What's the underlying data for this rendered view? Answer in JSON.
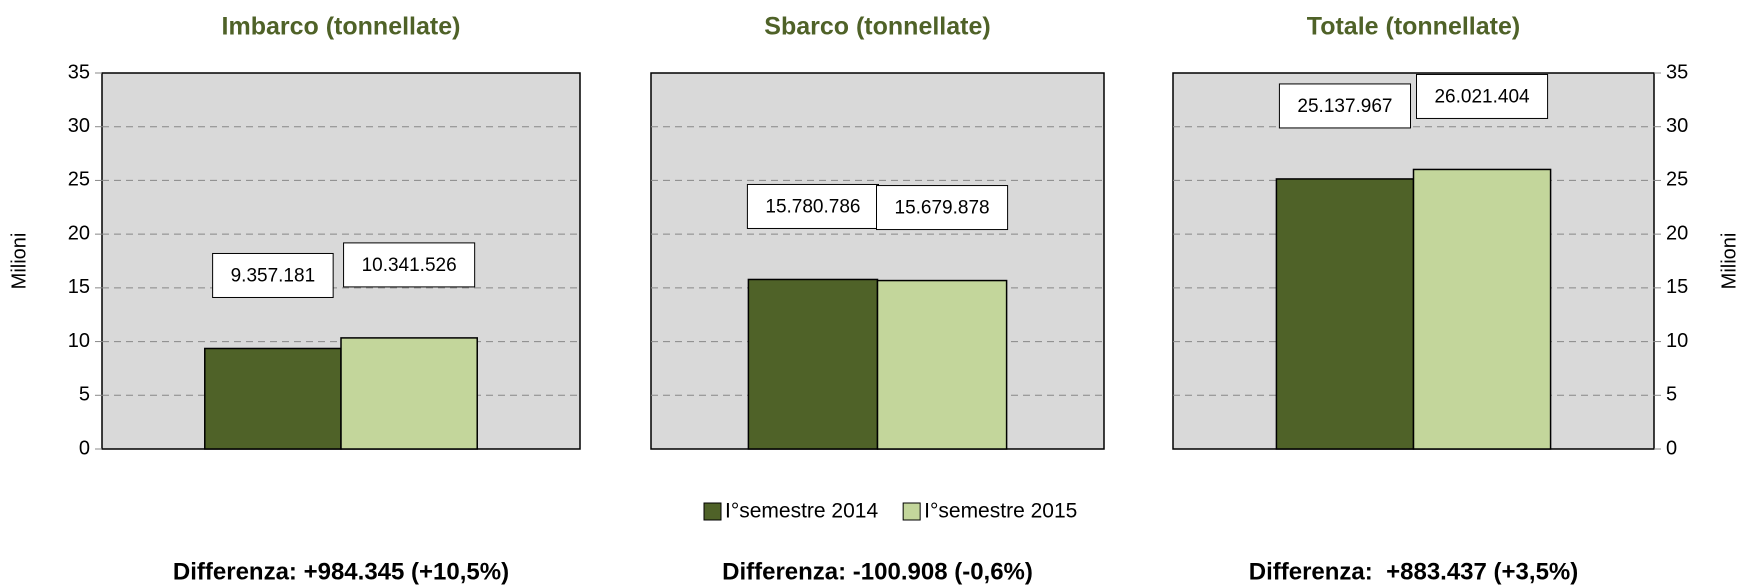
{
  "chart_data": [
    {
      "type": "bar",
      "title": "Imbarco (tonnellate)",
      "ylabel": "Milioni",
      "axis_side": "left",
      "ylim": [
        0,
        35
      ],
      "yticks": [
        0,
        5,
        10,
        15,
        20,
        25,
        30,
        35
      ],
      "grid": true,
      "series": [
        {
          "name": "I°semestre 2014",
          "color": "#4f6228",
          "values": [
            9.357181
          ],
          "value_labels": [
            "9.357.181"
          ]
        },
        {
          "name": "I°semestre 2015",
          "color": "#c3d69b",
          "values": [
            10.341526
          ],
          "value_labels": [
            "10.341.526"
          ]
        }
      ],
      "note": "Differenza: +984.345 (+10,5%)"
    },
    {
      "type": "bar",
      "title": "Sbarco (tonnellate)",
      "show_tick_labels": false,
      "ylim": [
        0,
        35
      ],
      "yticks": [
        0,
        5,
        10,
        15,
        20,
        25,
        30,
        35
      ],
      "grid": true,
      "series": [
        {
          "name": "I°semestre 2014",
          "color": "#4f6228",
          "values": [
            15.780786
          ],
          "value_labels": [
            "15.780.786"
          ]
        },
        {
          "name": "I°semestre 2015",
          "color": "#c3d69b",
          "values": [
            15.679878
          ],
          "value_labels": [
            "15.679.878"
          ]
        }
      ],
      "note": "Differenza: -100.908 (-0,6%)"
    },
    {
      "type": "bar",
      "title": "Totale (tonnellate)",
      "ylabel": "Milioni",
      "axis_side": "right",
      "ylim": [
        0,
        35
      ],
      "yticks": [
        0,
        5,
        10,
        15,
        20,
        25,
        30,
        35
      ],
      "grid": true,
      "series": [
        {
          "name": "I°semestre 2014",
          "color": "#4f6228",
          "values": [
            25.137967
          ],
          "value_labels": [
            "25.137.967"
          ]
        },
        {
          "name": "I°semestre 2015",
          "color": "#c3d69b",
          "values": [
            26.021404
          ],
          "value_labels": [
            "26.021.404"
          ]
        }
      ],
      "note": "Differenza:  +883.437 (+3,5%)"
    }
  ]
}
